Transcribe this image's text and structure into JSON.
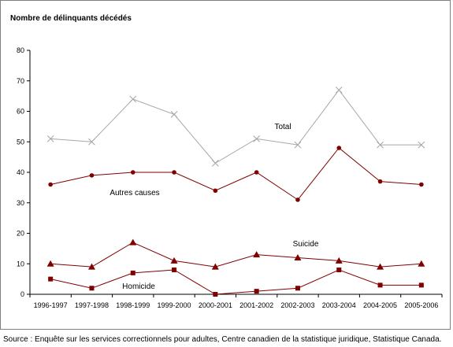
{
  "chart_data": {
    "type": "line",
    "ylabel": "Nombre de délinquants décédés",
    "ylim": [
      0,
      80
    ],
    "yticks": [
      0,
      10,
      20,
      30,
      40,
      50,
      60,
      70,
      80
    ],
    "categories": [
      "1996-1997",
      "1997-1998",
      "1998-1999",
      "1999-2000",
      "2000-2001",
      "2001-2002",
      "2002-2003",
      "2003-2004",
      "2004-2005",
      "2005-2006"
    ],
    "grid": false,
    "series": [
      {
        "name": "Total",
        "values": [
          51,
          50,
          64,
          59,
          43,
          51,
          49,
          67,
          49,
          49
        ],
        "color": "#a6a6a6",
        "marker": "x"
      },
      {
        "name": "Autres causes",
        "values": [
          36,
          39,
          40,
          40,
          34,
          40,
          31,
          48,
          37,
          36
        ],
        "color": "#800000",
        "marker": "circle"
      },
      {
        "name": "Suicide",
        "values": [
          10,
          9,
          17,
          11,
          9,
          13,
          12,
          11,
          9,
          10
        ],
        "color": "#800000",
        "marker": "triangle"
      },
      {
        "name": "Homicide",
        "values": [
          5,
          2,
          7,
          8,
          0,
          1,
          2,
          8,
          3,
          3
        ],
        "color": "#800000",
        "marker": "square"
      }
    ]
  },
  "source": "Source : Enquête sur les services correctionnels pour adultes, Centre canadien de la statistique juridique, Statistique Canada."
}
